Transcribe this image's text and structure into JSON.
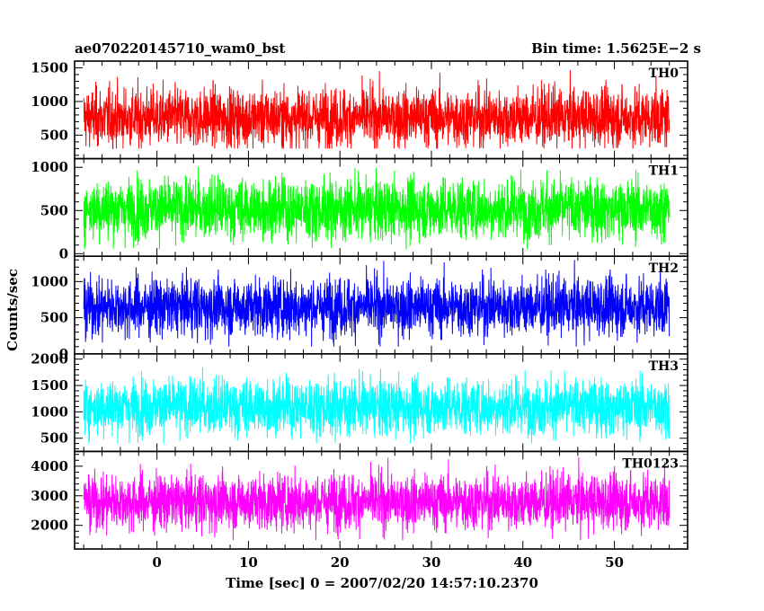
{
  "chart_data": {
    "type": "line",
    "title_left": "ae070220145710_wam0_bst",
    "title_right": "Bin time: 1.5625E−2 s",
    "xlabel": "Time [sec] 0 = 2007/02/20 14:57:10.2370",
    "ylabel": "Counts/sec",
    "xlim": [
      -9,
      58
    ],
    "xticks": [
      0,
      10,
      20,
      30,
      40,
      50
    ],
    "data_x_range": [
      -8,
      56
    ],
    "bin_time_s": 0.015625,
    "panels": [
      {
        "name": "TH0",
        "color": "#ff0000",
        "ylim": [
          150,
          1600
        ],
        "yticks": [
          500,
          1000,
          1500
        ],
        "level_mean": 760,
        "level_low": 300,
        "level_high": 1600
      },
      {
        "name": "TH1",
        "color": "#00ff00",
        "ylim": [
          -30,
          1100
        ],
        "yticks": [
          0,
          500,
          1000
        ],
        "level_mean": 520,
        "level_low": 50,
        "level_high": 1100
      },
      {
        "name": "TH2",
        "color": "#0000ff",
        "ylim": [
          0,
          1350
        ],
        "yticks": [
          0,
          500,
          1000
        ],
        "level_mean": 650,
        "level_low": 100,
        "level_high": 1300
      },
      {
        "name": "TH3",
        "color": "#00ffff",
        "ylim": [
          250,
          2100
        ],
        "yticks": [
          500,
          1000,
          1500,
          2000
        ],
        "level_mean": 1100,
        "level_low": 400,
        "level_high": 2000
      },
      {
        "name": "TH0123",
        "color": "#ff00ff",
        "ylim": [
          1200,
          4500
        ],
        "yticks": [
          2000,
          3000,
          4000
        ],
        "level_mean": 2800,
        "level_low": 1500,
        "level_high": 4300
      }
    ]
  }
}
